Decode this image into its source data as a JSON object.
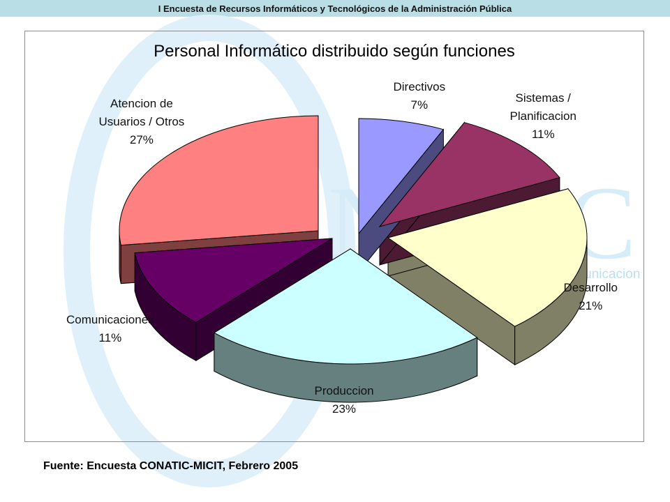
{
  "header": {
    "title": "I Encuesta de Recursos Informáticos y Tecnológicos de la Administración Pública"
  },
  "watermark": {
    "brand": "NATIC",
    "tagline": "Comunicacion"
  },
  "footer": {
    "source": "Fuente: Encuesta CONATIC-MICIT, Febrero 2005"
  },
  "chart_data": {
    "type": "pie",
    "title": "Personal Informático distribuido según funciones",
    "style": "3d-exploded",
    "slices": [
      {
        "name_lines": [
          "Directivos"
        ],
        "label": "7%",
        "value": 7,
        "color": "#9999ff",
        "side_color": "#4b4b80"
      },
      {
        "name_lines": [
          "Sistemas /",
          "Planificacion"
        ],
        "label": "11%",
        "value": 11,
        "color": "#993366",
        "side_color": "#4d1a33"
      },
      {
        "name_lines": [
          "Desarrollo"
        ],
        "label": "21%",
        "value": 21,
        "color": "#ffffcc",
        "side_color": "#808066"
      },
      {
        "name_lines": [
          "Produccion"
        ],
        "label": "23%",
        "value": 23,
        "color": "#ccffff",
        "side_color": "#668080"
      },
      {
        "name_lines": [
          "Comunicaciones"
        ],
        "label": "11%",
        "value": 11,
        "color": "#660066",
        "side_color": "#330033"
      },
      {
        "name_lines": [
          "Atencion de",
          "Usuarios / Otros"
        ],
        "label": "27%",
        "value": 27,
        "color": "#ff8080",
        "side_color": "#804040"
      }
    ]
  }
}
